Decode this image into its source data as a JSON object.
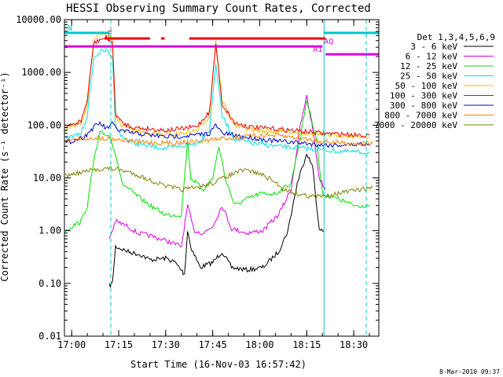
{
  "chart_data": {
    "type": "line",
    "title": "HESSI Observing Summary Count Rates, Corrected",
    "xlabel": "Start Time (16-Nov-03 16:57:42)",
    "ylabel": "Corrected Count Rate (s⁻¹ detector⁻¹)",
    "y_scale": "log",
    "ylim": [
      0.01,
      10000
    ],
    "xlim": [
      "16:57:42",
      "18:38:00"
    ],
    "x_ticks": [
      "17:00",
      "17:15",
      "17:30",
      "17:45",
      "18:00",
      "18:15",
      "18:30"
    ],
    "y_ticks": [
      "0.01",
      "0.10",
      "1.00",
      "10.00",
      "100.00",
      "1000.00",
      "10000.00"
    ],
    "legend_title": "Det 1,3,4,5,6,9",
    "legend_position": "right",
    "timestamp": "8-Mar-2010 09:37",
    "vertical_lines": {
      "solid": [
        "16:57:42",
        "18:20:30"
      ],
      "dashed": [
        "17:12:30",
        "18:34:00"
      ]
    },
    "flags": [
      {
        "label": "F",
        "color": "#ee0000",
        "level": 4400,
        "segments": [
          [
            "17:10:30",
            "17:25:00"
          ],
          [
            "17:28:30",
            "17:29:40"
          ],
          [
            "17:37:30",
            "18:21:00"
          ]
        ]
      },
      {
        "label": "AQ",
        "color": "#dd00dd",
        "level": 3100,
        "segments": [
          [
            "16:57:42",
            "18:20:00"
          ]
        ]
      },
      {
        "label": "A1",
        "color": "#dd00dd",
        "level": 2200,
        "segments": [
          [
            "18:21:00",
            "18:38:00"
          ]
        ]
      },
      {
        "label": "N",
        "color": "#00c8c8",
        "level": 5600,
        "segments": [
          [
            "16:57:42",
            "17:12:00"
          ],
          [
            "18:20:30",
            "18:38:00"
          ]
        ]
      }
    ],
    "series": [
      {
        "name": "3 - 6 keV",
        "color": "#000000",
        "points": [
          [
            "17:12:00",
            0.09
          ],
          [
            "17:13:00",
            0.1
          ],
          [
            "17:14:00",
            0.5
          ],
          [
            "17:18:00",
            0.4
          ],
          [
            "17:22:00",
            0.35
          ],
          [
            "17:25:00",
            0.28
          ],
          [
            "17:30:00",
            0.3
          ],
          [
            "17:33:00",
            0.25
          ],
          [
            "17:36:00",
            0.15
          ],
          [
            "17:37:00",
            1.0
          ],
          [
            "17:38:00",
            0.5
          ],
          [
            "17:41:00",
            0.2
          ],
          [
            "17:45:00",
            0.25
          ],
          [
            "17:48:00",
            0.4
          ],
          [
            "17:51:00",
            0.2
          ],
          [
            "17:56:00",
            0.18
          ],
          [
            "18:01:00",
            0.2
          ],
          [
            "18:06:00",
            0.4
          ],
          [
            "18:09:00",
            1.0
          ],
          [
            "18:12:00",
            8.0
          ],
          [
            "18:15:00",
            30.0
          ],
          [
            "18:17:00",
            15.0
          ],
          [
            "18:19:00",
            1.0
          ],
          [
            "18:20:30",
            1.0
          ]
        ]
      },
      {
        "name": "6 - 12 keV",
        "color": "#dd00dd",
        "points": [
          [
            "17:12:00",
            0.7
          ],
          [
            "17:14:00",
            1.5
          ],
          [
            "17:18:00",
            1.2
          ],
          [
            "17:21:00",
            0.9
          ],
          [
            "17:25:00",
            0.8
          ],
          [
            "17:30:00",
            0.65
          ],
          [
            "17:35:00",
            0.5
          ],
          [
            "17:37:00",
            3.0
          ],
          [
            "17:39:00",
            1.0
          ],
          [
            "17:42:00",
            0.9
          ],
          [
            "17:45:00",
            1.2
          ],
          [
            "17:48:00",
            3.0
          ],
          [
            "17:51:00",
            1.1
          ],
          [
            "17:56:00",
            0.9
          ],
          [
            "18:01:00",
            1.0
          ],
          [
            "18:06:00",
            2.0
          ],
          [
            "18:10:00",
            6.0
          ],
          [
            "18:13:00",
            100.0
          ],
          [
            "18:15:00",
            350.0
          ],
          [
            "18:17:00",
            80.0
          ],
          [
            "18:19:00",
            10.0
          ],
          [
            "18:21:00",
            6.0
          ]
        ]
      },
      {
        "name": "12 - 25 keV",
        "color": "#00e000",
        "points": [
          [
            "16:58:00",
            1.0
          ],
          [
            "17:00:00",
            1.2
          ],
          [
            "17:03:00",
            1.5
          ],
          [
            "17:05:00",
            3.0
          ],
          [
            "17:07:00",
            20.0
          ],
          [
            "17:09:00",
            70.0
          ],
          [
            "17:12:00",
            65.0
          ],
          [
            "17:14:00",
            30.0
          ],
          [
            "17:16:00",
            8.0
          ],
          [
            "17:20:00",
            5.0
          ],
          [
            "17:25:00",
            3.0
          ],
          [
            "17:30:00",
            2.0
          ],
          [
            "17:35:00",
            2.0
          ],
          [
            "17:37:00",
            50.0
          ],
          [
            "17:38:00",
            10.0
          ],
          [
            "17:42:00",
            6.0
          ],
          [
            "17:45:00",
            10.0
          ],
          [
            "17:47:00",
            40.0
          ],
          [
            "17:49:00",
            10.0
          ],
          [
            "17:52:00",
            3.0
          ],
          [
            "17:56:00",
            4.0
          ],
          [
            "18:00:00",
            5.0
          ],
          [
            "18:05:00",
            5.0
          ],
          [
            "18:10:00",
            8.0
          ],
          [
            "18:13:00",
            60.0
          ],
          [
            "18:15:00",
            300.0
          ],
          [
            "18:18:00",
            60.0
          ],
          [
            "18:20:00",
            5.0
          ],
          [
            "18:25:00",
            4.0
          ],
          [
            "18:30:00",
            3.0
          ],
          [
            "18:35:00",
            3.0
          ]
        ]
      },
      {
        "name": "25 - 50 keV",
        "color": "#00e0e0",
        "points": [
          [
            "16:58:00",
            55.0
          ],
          [
            "17:00:00",
            60.0
          ],
          [
            "17:03:00",
            70.0
          ],
          [
            "17:05:00",
            150.0
          ],
          [
            "17:07:00",
            1800.0
          ],
          [
            "17:09:00",
            2500.0
          ],
          [
            "17:11:00",
            2600.0
          ],
          [
            "17:13:00",
            2000.0
          ],
          [
            "17:14:00",
            100.0
          ],
          [
            "17:16:00",
            60.0
          ],
          [
            "17:20:00",
            45.0
          ],
          [
            "17:25:00",
            40.0
          ],
          [
            "17:30:00",
            36.0
          ],
          [
            "17:35:00",
            40.0
          ],
          [
            "17:40:00",
            45.0
          ],
          [
            "17:44:00",
            80.0
          ],
          [
            "17:46:00",
            1500.0
          ],
          [
            "17:48:00",
            150.0
          ],
          [
            "17:52:00",
            55.0
          ],
          [
            "17:58:00",
            45.0
          ],
          [
            "18:05:00",
            40.0
          ],
          [
            "18:10:00",
            38.0
          ],
          [
            "18:15:00",
            36.0
          ],
          [
            "18:20:00",
            34.0
          ],
          [
            "18:25:00",
            32.0
          ],
          [
            "18:30:00",
            31.0
          ],
          [
            "18:35:00",
            30.0
          ]
        ]
      },
      {
        "name": "50 - 100 keV",
        "color": "#e8c000",
        "points": [
          [
            "16:58:00",
            80.0
          ],
          [
            "17:00:00",
            90.0
          ],
          [
            "17:03:00",
            110.0
          ],
          [
            "17:05:00",
            250.0
          ],
          [
            "17:07:00",
            4000.0
          ],
          [
            "17:09:00",
            6000.0
          ],
          [
            "17:11:00",
            5000.0
          ],
          [
            "17:13:00",
            4000.0
          ],
          [
            "17:14:00",
            150.0
          ],
          [
            "17:16:00",
            100.0
          ],
          [
            "17:20:00",
            80.0
          ],
          [
            "17:25:00",
            70.0
          ],
          [
            "17:30:00",
            65.0
          ],
          [
            "17:35:00",
            70.0
          ],
          [
            "17:40:00",
            80.0
          ],
          [
            "17:44:00",
            150.0
          ],
          [
            "17:46:00",
            4000.0
          ],
          [
            "17:48:00",
            300.0
          ],
          [
            "17:52:00",
            100.0
          ],
          [
            "17:58:00",
            80.0
          ],
          [
            "18:05:00",
            75.0
          ],
          [
            "18:10:00",
            75.0
          ],
          [
            "18:15:00",
            70.0
          ],
          [
            "18:20:00",
            65.0
          ],
          [
            "18:25:00",
            65.0
          ],
          [
            "18:30:00",
            62.0
          ],
          [
            "18:35:00",
            60.0
          ]
        ]
      },
      {
        "name": "100 - 300 keV",
        "color": "#ee0000",
        "points": [
          [
            "16:58:00",
            90.0
          ],
          [
            "17:00:00",
            100.0
          ],
          [
            "17:03:00",
            120.0
          ],
          [
            "17:05:00",
            300.0
          ],
          [
            "17:07:00",
            3500.0
          ],
          [
            "17:09:00",
            4200.0
          ],
          [
            "17:11:00",
            4500.0
          ],
          [
            "17:13:00",
            3800.0
          ],
          [
            "17:14:00",
            170.0
          ],
          [
            "17:16:00",
            110.0
          ],
          [
            "17:20:00",
            90.0
          ],
          [
            "17:25:00",
            85.0
          ],
          [
            "17:30:00",
            80.0
          ],
          [
            "17:35:00",
            85.0
          ],
          [
            "17:40:00",
            95.0
          ],
          [
            "17:44:00",
            180.0
          ],
          [
            "17:46:00",
            3500.0
          ],
          [
            "17:48:00",
            250.0
          ],
          [
            "17:52:00",
            110.0
          ],
          [
            "17:58:00",
            90.0
          ],
          [
            "18:05:00",
            85.0
          ],
          [
            "18:10:00",
            80.0
          ],
          [
            "18:15:00",
            75.0
          ],
          [
            "18:20:00",
            70.0
          ],
          [
            "18:25:00",
            68.0
          ],
          [
            "18:30:00",
            66.0
          ],
          [
            "18:35:00",
            65.0
          ]
        ]
      },
      {
        "name": "300 - 800 keV",
        "color": "#0000cc",
        "points": [
          [
            "16:58:00",
            45.0
          ],
          [
            "17:00:00",
            50.0
          ],
          [
            "17:04:00",
            60.0
          ],
          [
            "17:07:00",
            90.0
          ],
          [
            "17:09:00",
            110.0
          ],
          [
            "17:11:00",
            85.0
          ],
          [
            "17:13:00",
            105.0
          ],
          [
            "17:15:00",
            80.0
          ],
          [
            "17:20:00",
            70.0
          ],
          [
            "17:25:00",
            65.0
          ],
          [
            "17:30:00",
            60.0
          ],
          [
            "17:35:00",
            62.0
          ],
          [
            "17:40:00",
            65.0
          ],
          [
            "17:44:00",
            70.0
          ],
          [
            "17:46:00",
            100.0
          ],
          [
            "17:48:00",
            70.0
          ],
          [
            "17:55:00",
            60.0
          ],
          [
            "18:00:00",
            55.0
          ],
          [
            "18:05:00",
            50.0
          ],
          [
            "18:10:00",
            48.0
          ],
          [
            "18:15:00",
            45.0
          ],
          [
            "18:20:00",
            42.0
          ],
          [
            "18:25:00",
            42.0
          ],
          [
            "18:30:00",
            43.0
          ],
          [
            "18:35:00",
            45.0
          ]
        ]
      },
      {
        "name": "800 - 7000 keV",
        "color": "#ff7f00",
        "points": [
          [
            "16:58:00",
            50.0
          ],
          [
            "17:03:00",
            55.0
          ],
          [
            "17:08:00",
            58.0
          ],
          [
            "17:12:00",
            56.0
          ],
          [
            "17:17:00",
            52.0
          ],
          [
            "17:22:00",
            48.0
          ],
          [
            "17:27:00",
            46.0
          ],
          [
            "17:32:00",
            46.0
          ],
          [
            "17:37:00",
            48.0
          ],
          [
            "17:42:00",
            50.0
          ],
          [
            "17:47:00",
            55.0
          ],
          [
            "17:52:00",
            58.0
          ],
          [
            "17:57:00",
            62.0
          ],
          [
            "18:02:00",
            65.0
          ],
          [
            "18:07:00",
            62.0
          ],
          [
            "18:12:00",
            58.0
          ],
          [
            "18:17:00",
            52.0
          ],
          [
            "18:22:00",
            48.0
          ],
          [
            "18:27:00",
            46.0
          ],
          [
            "18:32:00",
            45.0
          ],
          [
            "18:36:00",
            45.0
          ]
        ]
      },
      {
        "name": "7000 - 20000 keV",
        "color": "#808000",
        "points": [
          [
            "16:58:00",
            11.0
          ],
          [
            "17:01:00",
            12.0
          ],
          [
            "17:04:00",
            13.0
          ],
          [
            "17:07:00",
            14.0
          ],
          [
            "17:10:00",
            15.0
          ],
          [
            "17:13:00",
            15.0
          ],
          [
            "17:16:00",
            14.0
          ],
          [
            "17:20:00",
            12.0
          ],
          [
            "17:25:00",
            9.0
          ],
          [
            "17:30:00",
            7.0
          ],
          [
            "17:35:00",
            6.0
          ],
          [
            "17:40:00",
            6.5
          ],
          [
            "17:45:00",
            8.0
          ],
          [
            "17:50:00",
            11.0
          ],
          [
            "17:53:00",
            13.0
          ],
          [
            "17:56:00",
            14.0
          ],
          [
            "18:00:00",
            12.0
          ],
          [
            "18:04:00",
            9.0
          ],
          [
            "18:08:00",
            6.0
          ],
          [
            "18:12:00",
            5.0
          ],
          [
            "18:16:00",
            4.5
          ],
          [
            "18:20:00",
            4.5
          ],
          [
            "18:24:00",
            5.0
          ],
          [
            "18:28:00",
            5.5
          ],
          [
            "18:32:00",
            6.0
          ],
          [
            "18:36:00",
            6.5
          ]
        ]
      }
    ]
  }
}
